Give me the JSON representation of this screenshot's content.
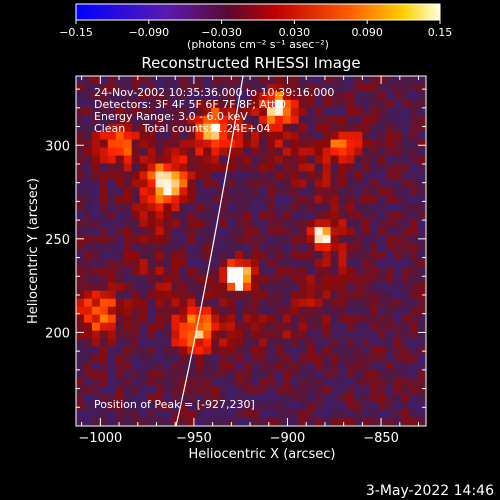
{
  "colorbar": {
    "tick_labels": [
      "−0.15",
      "−0.090",
      "−0.030",
      "0.030",
      "0.090",
      "0.15"
    ],
    "tick_values": [
      -0.15,
      -0.09,
      -0.03,
      0.03,
      0.09,
      0.15
    ],
    "range": [
      -0.15,
      0.15
    ],
    "units_label": "(photons cm⁻² s⁻¹ asec⁻²)"
  },
  "chart_data": {
    "type": "heatmap",
    "title": "Reconstructed RHESSI Image",
    "xlabel": "Heliocentric X (arcsec)",
    "ylabel": "Heliocentric Y (arcsec)",
    "xlim": [
      -1013,
      -826
    ],
    "ylim": [
      150,
      337
    ],
    "x_ticks": [
      -1000,
      -950,
      -900,
      -850
    ],
    "x_tick_labels": [
      "−1000",
      "−950",
      "−900",
      "−850"
    ],
    "y_ticks": [
      200,
      250,
      300
    ],
    "y_tick_labels": [
      "200",
      "250",
      "300"
    ],
    "peak": {
      "x": -927,
      "y": 230
    },
    "colormap": [
      "#0000ff",
      "#3a1f7a",
      "#4a1a4a",
      "#8a0a0a",
      "#ff2000",
      "#ff9a00",
      "#ffffff"
    ],
    "annotations": [
      "24-Nov-2002 10:35:36.000 to 10:39:16.000",
      "Detectors: 3F 4F 5F 6F 7F 8F; Att 0",
      "Energy Range: 3.0 - 6.0 keV",
      "Clean     Total counts: 1.24E+04",
      "Position of Peak = [-927,230]"
    ]
  },
  "footer": {
    "date": "3-May-2022 14:46"
  }
}
